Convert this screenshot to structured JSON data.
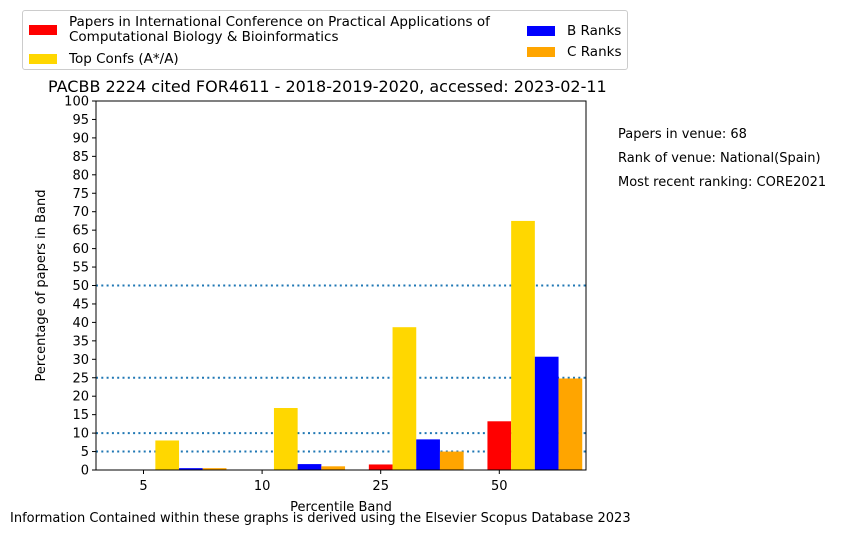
{
  "chart_data": {
    "type": "bar",
    "title": "PACBB 2224 cited FOR4611 - 2018-2019-2020, accessed: 2023-02-11",
    "xlabel": "Percentile Band",
    "ylabel": "Percentage of papers in Band",
    "categories": [
      "5",
      "10",
      "25",
      "50"
    ],
    "ylim": [
      0,
      100
    ],
    "yticks": [
      0,
      5,
      10,
      15,
      20,
      25,
      30,
      35,
      40,
      45,
      50,
      55,
      60,
      65,
      70,
      75,
      80,
      85,
      90,
      95,
      100
    ],
    "series": [
      {
        "name": "Papers in International Conference on Practical Applications of Computational Biology & Bioinformatics",
        "color": "#ff0000",
        "values": [
          0,
          0,
          1.5,
          13.2
        ]
      },
      {
        "name": "Top Confs (A*/A)",
        "color": "#ffd700",
        "values": [
          8.0,
          16.8,
          38.7,
          67.5
        ]
      },
      {
        "name": "B Ranks",
        "color": "#0000ff",
        "values": [
          0.5,
          1.6,
          8.3,
          30.7
        ]
      },
      {
        "name": "C Ranks",
        "color": "#ffa500",
        "values": [
          0.5,
          1.0,
          5.0,
          24.8
        ]
      }
    ],
    "reference_lines": [
      5,
      10,
      25,
      50
    ],
    "reference_line_color": "#1f77b4",
    "legend_position": "top"
  },
  "legend": {
    "venue_line1": "Papers in International Conference on Practical Applications of",
    "venue_line2": "Computational Biology & Bioinformatics",
    "top": "Top Confs (A*/A)",
    "b": "B Ranks",
    "c": "C Ranks"
  },
  "side_notes": {
    "papers": "Papers in venue: 68",
    "rank": "Rank of venue: National(Spain)",
    "recent": "Most recent ranking: CORE2021"
  },
  "footer": "Information Contained within these graphs is derived using the Elsevier Scopus Database 2023",
  "colors": {
    "venue": "#ff0000",
    "top": "#ffd700",
    "b": "#0000ff",
    "c": "#ffa500"
  }
}
